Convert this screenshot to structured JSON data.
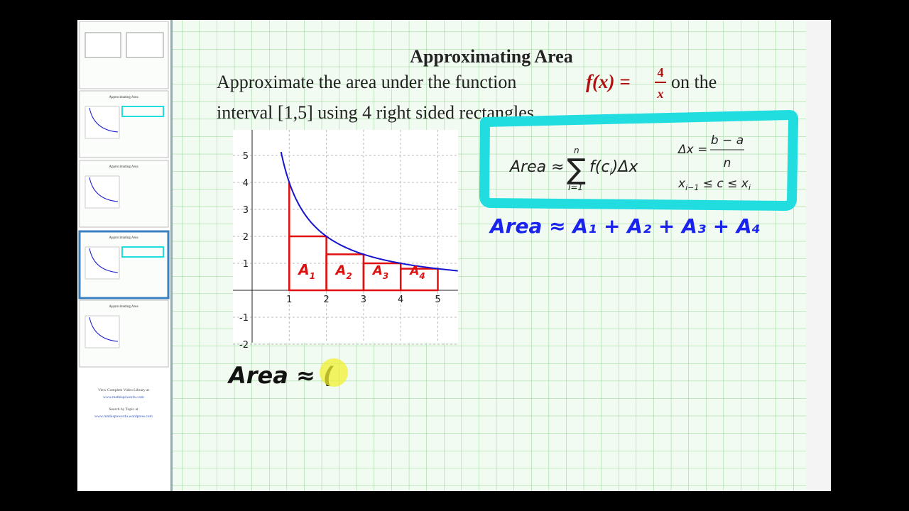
{
  "sidebar": {
    "thumbnails": [
      "Approximating Area",
      "Approximating Area",
      "Approximating Area",
      "Approximating Area"
    ],
    "footer": [
      "View Complete Video Library at",
      "www.mathispower4u.com",
      "Search by Topic at",
      "www.mathispower4u.wordpress.com"
    ]
  },
  "slide": {
    "title": "Approximating Area",
    "problem": {
      "before": "Approximate the area under the function",
      "function_lhs": "f(x) =",
      "numerator": "4",
      "denominator": "x",
      "after": "on the",
      "line2": "interval [1,5] using 4 right sided rectangles."
    },
    "formula": {
      "area": "Area ≈",
      "sum_symbol": "∑",
      "sum_top": "n",
      "sum_bottom": "i=1",
      "summand": "f(c",
      "summand_sub": "i",
      "summand_end": ")Δx",
      "dx_lhs": "Δx =",
      "dx_numerator": "b − a",
      "dx_denominator": "n",
      "c_left": "x",
      "c_left_sub": "i−1",
      "c_middle": " ≤ c ≤ x",
      "c_right_sub": "i"
    },
    "graph": {
      "x_ticks": [
        1,
        2,
        3,
        4,
        5
      ],
      "y_ticks": [
        -2,
        -1,
        1,
        2,
        3,
        4,
        5
      ],
      "rect_labels": [
        {
          "letter": "A",
          "sub": "1"
        },
        {
          "letter": "A",
          "sub": "2"
        },
        {
          "letter": "A",
          "sub": "3"
        },
        {
          "letter": "A",
          "sub": "4"
        }
      ]
    },
    "notes": {
      "blue": "Area ≈ A₁ + A₂ + A₃ + A₄",
      "black": "Area ≈ ("
    }
  }
}
